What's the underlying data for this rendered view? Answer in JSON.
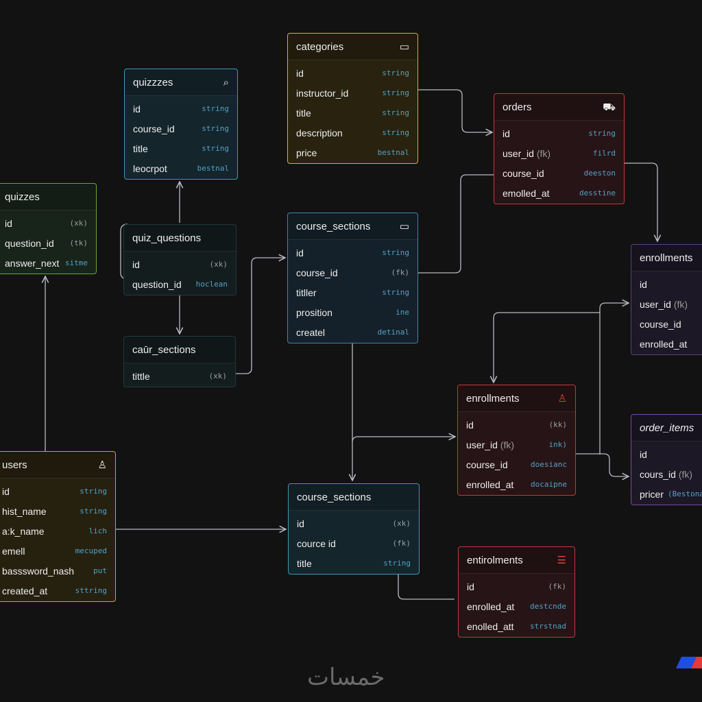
{
  "colors": {
    "background": "#121212",
    "connector": "#b8bcc4",
    "type_text": "#4fa3c7",
    "key_text": "#9aa0a6"
  },
  "tables": [
    {
      "title": "quizzzes",
      "icon": "search-clock-icon",
      "border": "#3a9bb5",
      "bg": "#15252c",
      "fields": [
        [
          "id",
          "",
          "string"
        ],
        [
          "course_id",
          "",
          "string"
        ],
        [
          "title",
          "",
          "string"
        ],
        [
          "leocrpot",
          "",
          "bestnal"
        ]
      ]
    },
    {
      "title": "quizzes",
      "icon": "",
      "border": "#6aaa2e",
      "bg": "#18231a",
      "fields": [
        [
          "id",
          "",
          "(xk)"
        ],
        [
          "question_id",
          "",
          "(tk)"
        ],
        [
          "answer_next",
          "",
          "sitme"
        ]
      ]
    },
    {
      "title": "quiz_questions",
      "icon": "",
      "border": "#1f3a3c",
      "bg": "#141d1e",
      "fields": [
        [
          "id",
          "",
          "(xk)"
        ],
        [
          "question_id",
          "",
          "hoclean"
        ]
      ]
    },
    {
      "title": "caūr_sections",
      "icon": "",
      "border": "#1f3a3c",
      "bg": "#141d1e",
      "fields": [
        [
          "tittle",
          "",
          "(xk)"
        ]
      ]
    },
    {
      "title": "categories",
      "icon": "tray-icon",
      "border": "#e0b21c",
      "bg": "#28220f",
      "fields": [
        [
          "id",
          "",
          "string"
        ],
        [
          "instructor_id",
          "",
          "string"
        ],
        [
          "title",
          "",
          "string"
        ],
        [
          "description",
          "",
          "string"
        ],
        [
          "price",
          "",
          "bestnal"
        ]
      ]
    },
    {
      "title": "orders",
      "icon": "cart-icon",
      "border": "#c33a3a",
      "bg": "#271416",
      "fields": [
        [
          "id",
          "",
          "string"
        ],
        [
          "user_id",
          "(fk)",
          "filrd"
        ],
        [
          "course_id",
          "",
          "deeston"
        ],
        [
          "emolled_at",
          "",
          "desstine"
        ]
      ]
    },
    {
      "title": "course_sections",
      "icon": "tray-icon",
      "border": "#3a8aa5",
      "bg": "#15212a",
      "fields": [
        [
          "id",
          "",
          "string"
        ],
        [
          "course_id",
          "",
          "(fk)"
        ],
        [
          "titller",
          "",
          "string"
        ],
        [
          "prosition",
          "",
          "ine"
        ],
        [
          "createl",
          "",
          "detinal"
        ]
      ]
    },
    {
      "title": "enrollments",
      "icon": "",
      "border": "#5c3f80",
      "bg": "#1d1825",
      "fields": [
        [
          "id",
          "",
          ""
        ],
        [
          "user_id",
          "(fk)",
          ""
        ],
        [
          "course_id",
          "",
          ""
        ],
        [
          "enrolled_at",
          "",
          ""
        ]
      ]
    },
    {
      "title": "enrollments",
      "icon": "person-icon",
      "border": "#c33a3a",
      "bg": "#271416",
      "fields": [
        [
          "id",
          "",
          "(kk)"
        ],
        [
          "user_id",
          "(fk)",
          "ink)"
        ],
        [
          "course_id",
          "",
          "doesianc"
        ],
        [
          "enrolled_at",
          "",
          "docaipne"
        ]
      ]
    },
    {
      "title": "order_items",
      "icon": "",
      "border": "#7a4aa8",
      "bg": "#1d1825",
      "italic": true,
      "fields": [
        [
          "id",
          "",
          ""
        ],
        [
          "cours_id",
          "(fk)",
          ""
        ],
        [
          "pricer",
          "",
          "(Bestona"
        ]
      ]
    },
    {
      "title": "users",
      "icon": "person-icon",
      "border": "#d8a21c",
      "bg": "#26200f",
      "fields": [
        [
          "id",
          "",
          "string"
        ],
        [
          "hist_name",
          "",
          "string"
        ],
        [
          "a:k_name",
          "",
          "lich"
        ],
        [
          "emell",
          "",
          "mecuped"
        ],
        [
          "basssword_nash",
          "",
          "put"
        ],
        [
          "created_at",
          "",
          "sttring"
        ]
      ]
    },
    {
      "title": "course_sections",
      "icon": "",
      "border": "#3a9bb5",
      "bg": "#15252c",
      "fields": [
        [
          "id",
          "",
          "(xk)"
        ],
        [
          "cource id",
          "",
          "(fk)"
        ],
        [
          "title",
          "",
          "string"
        ]
      ]
    },
    {
      "title": "entirolments",
      "icon": "filter-icon",
      "border": "#c33a3a",
      "bg": "#271416",
      "fields": [
        [
          "id",
          "",
          "(fk)"
        ],
        [
          "enrolled_at",
          "",
          "destcnde"
        ],
        [
          "enolled_att",
          "",
          "strstnad"
        ]
      ]
    }
  ],
  "watermark": "خمسات",
  "flag_colors": [
    "#1f4fe0",
    "#e03a3a"
  ]
}
